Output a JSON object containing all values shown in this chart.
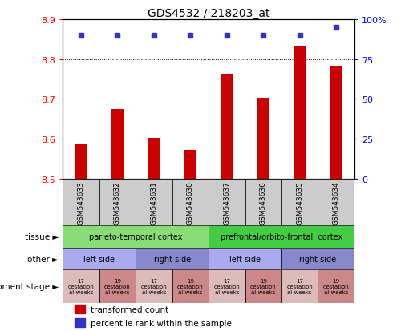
{
  "title": "GDS4532 / 218203_at",
  "samples": [
    "GSM543633",
    "GSM543632",
    "GSM543631",
    "GSM543630",
    "GSM543637",
    "GSM543636",
    "GSM543635",
    "GSM543634"
  ],
  "bar_values": [
    8.585,
    8.675,
    8.602,
    8.572,
    8.762,
    8.703,
    8.832,
    8.782
  ],
  "percentile_values": [
    90,
    90,
    90,
    90,
    90,
    90,
    90,
    95
  ],
  "ylim": [
    8.5,
    8.9
  ],
  "y2lim": [
    0,
    100
  ],
  "y_ticks": [
    8.5,
    8.6,
    8.7,
    8.8,
    8.9
  ],
  "y2_ticks": [
    0,
    25,
    50,
    75,
    100
  ],
  "y2_ticklabels": [
    "0",
    "25",
    "50",
    "75",
    "100%"
  ],
  "bar_color": "#cc0000",
  "percentile_color": "#3333cc",
  "tissue_row": {
    "label": "tissue",
    "groups": [
      {
        "text": "parieto-temporal cortex",
        "span": [
          0,
          4
        ],
        "color": "#88dd77"
      },
      {
        "text": "prefrontal/orbito-frontal  cortex",
        "span": [
          4,
          8
        ],
        "color": "#44cc44"
      }
    ]
  },
  "other_row": {
    "label": "other",
    "groups": [
      {
        "text": "left side",
        "span": [
          0,
          2
        ],
        "color": "#aaaaee"
      },
      {
        "text": "right side",
        "span": [
          2,
          4
        ],
        "color": "#8888cc"
      },
      {
        "text": "left side",
        "span": [
          4,
          6
        ],
        "color": "#aaaaee"
      },
      {
        "text": "right side",
        "span": [
          6,
          8
        ],
        "color": "#8888cc"
      }
    ]
  },
  "dev_row": {
    "label": "development stage",
    "cells": [
      {
        "text": "17\ngestation\nal weeks",
        "color": "#ddbbbb"
      },
      {
        "text": "19\ngestation\nal weeks",
        "color": "#cc8888"
      },
      {
        "text": "17\ngestation\nal weeks",
        "color": "#ddbbbb"
      },
      {
        "text": "19\ngestation\nal weeks",
        "color": "#cc8888"
      },
      {
        "text": "17\ngestation\nal weeks",
        "color": "#ddbbbb"
      },
      {
        "text": "19\ngestation\nal weeks",
        "color": "#cc8888"
      },
      {
        "text": "17\ngestation\nal weeks",
        "color": "#ddbbbb"
      },
      {
        "text": "19\ngestation\nal weeks",
        "color": "#cc8888"
      }
    ]
  },
  "legend": [
    {
      "color": "#cc0000",
      "label": "transformed count"
    },
    {
      "color": "#3333cc",
      "label": "percentile rank within the sample"
    }
  ],
  "xticklabel_bg": "#cccccc"
}
